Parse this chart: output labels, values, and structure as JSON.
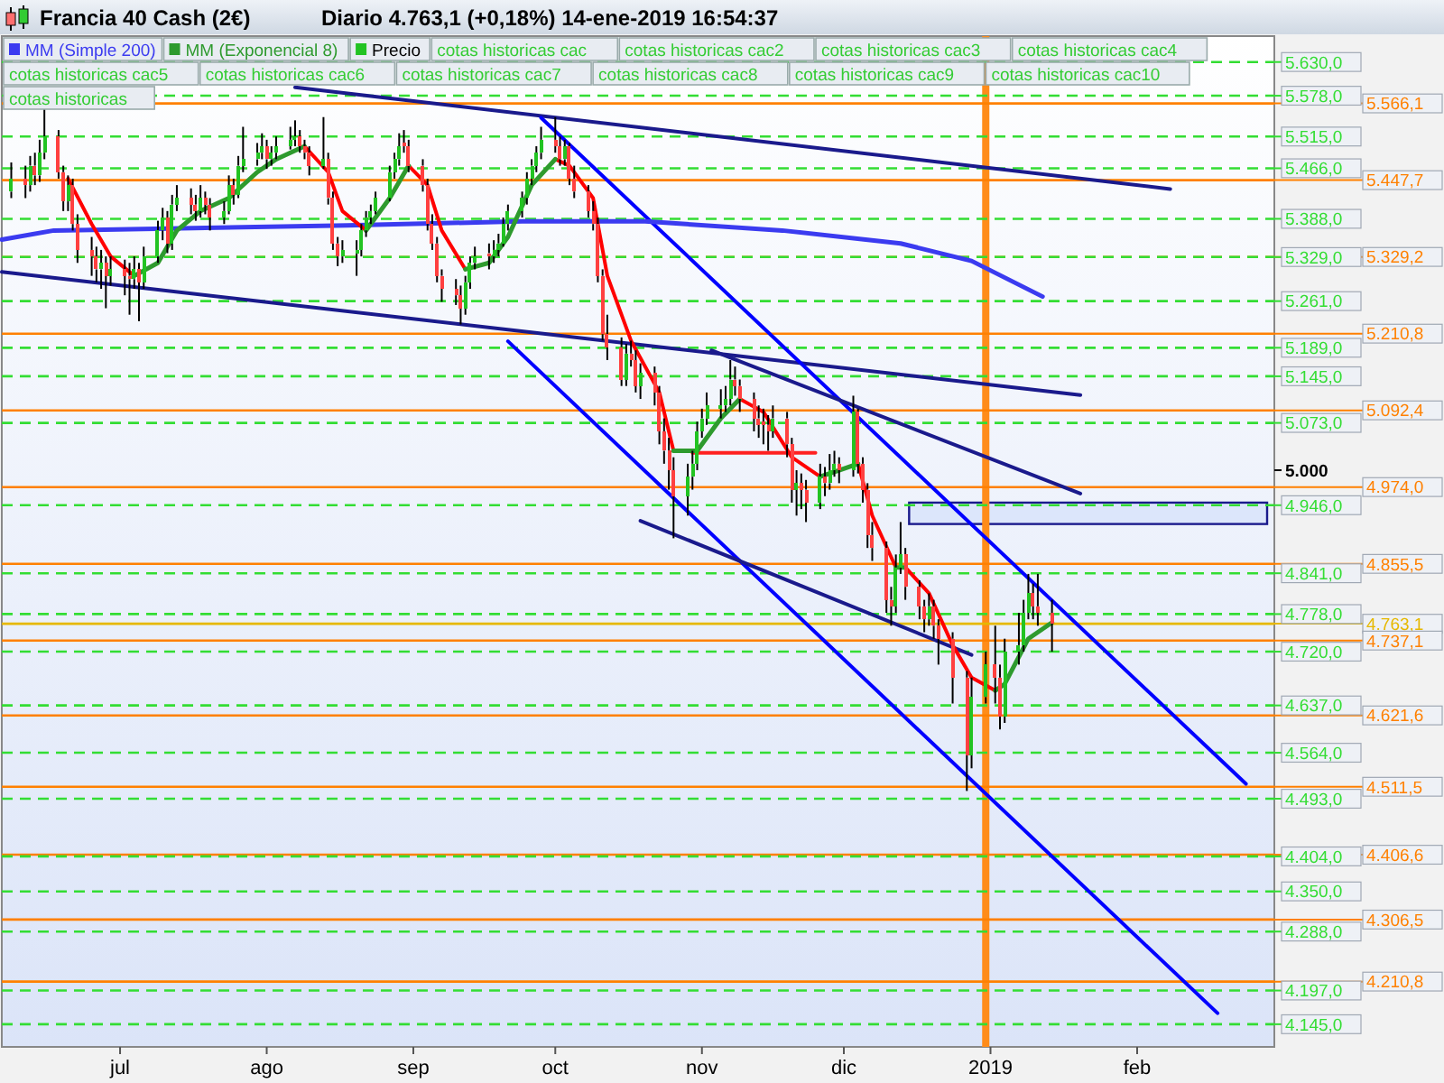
{
  "chart_data": {
    "type": "candlestick",
    "title": "Francia 40 Cash (2€)",
    "subtitle": "Diario   4.763,1 (+0,18%)   14-ene-2019 16:54:37",
    "xlim": [
      "2018-06-06",
      "2019-03-02"
    ],
    "ylim": [
      4110,
      5670
    ],
    "xticks": [
      {
        "value": "2018-07-01",
        "label": "jul"
      },
      {
        "value": "2018-08-01",
        "label": "ago"
      },
      {
        "value": "2018-09-01",
        "label": "sep"
      },
      {
        "value": "2018-10-01",
        "label": "oct"
      },
      {
        "value": "2018-11-01",
        "label": "nov"
      },
      {
        "value": "2018-12-01",
        "label": "dic"
      },
      {
        "value": "2019-01-01",
        "label": "2019"
      },
      {
        "value": "2019-02-01",
        "label": "feb"
      }
    ],
    "yticks": [
      {
        "value": 5630,
        "label": "5.630,0"
      },
      {
        "value": 5578,
        "label": "5.578,0"
      },
      {
        "value": 5515,
        "label": "5.515,0"
      },
      {
        "value": 5466,
        "label": "5.466,0"
      },
      {
        "value": 5388,
        "label": "5.388,0"
      },
      {
        "value": 5329,
        "label": "5.329,0"
      },
      {
        "value": 5261,
        "label": "5.261,0"
      },
      {
        "value": 5189,
        "label": "5.189,0"
      },
      {
        "value": 5145,
        "label": "5.145,0"
      },
      {
        "value": 5073,
        "label": "5.073,0"
      },
      {
        "value": 5000,
        "label": "5.000"
      },
      {
        "value": 4946,
        "label": "4.946,0"
      },
      {
        "value": 4841,
        "label": "4.841,0"
      },
      {
        "value": 4778,
        "label": "4.778,0"
      },
      {
        "value": 4720,
        "label": "4.720,0"
      },
      {
        "value": 4637,
        "label": "4.637,0"
      },
      {
        "value": 4564,
        "label": "4.564,0"
      },
      {
        "value": 4493,
        "label": "4.493,0"
      },
      {
        "value": 4404,
        "label": "4.404,0"
      },
      {
        "value": 4350,
        "label": "4.350,0"
      },
      {
        "value": 4288,
        "label": "4.288,0"
      },
      {
        "value": 4197,
        "label": "4.197,0"
      },
      {
        "value": 4145,
        "label": "4.145,0"
      }
    ],
    "legend": "top left",
    "annotations": [
      "cotas historicas cac",
      "cotas historicas cac2",
      "cotas historicas cac3",
      "cotas historicas cac4",
      "cotas historicas cac5",
      "cotas historicas cac6",
      "cotas historicas cac7",
      "cotas historicas cac8",
      "cotas historicas cac9",
      "cotas historicas cac10",
      "cotas historicas"
    ],
    "bands": [
      {
        "axis": "y",
        "from": 4917,
        "to": 4950,
        "color": "#dce6fb"
      }
    ],
    "ref_lines": [
      {
        "axis": "x",
        "value": "2018-12-31",
        "color": "#ff8c1a",
        "line_style": "solid"
      },
      {
        "axis": "y",
        "value": 5630,
        "color": "#33dd33",
        "line_style": "dashed"
      },
      {
        "axis": "y",
        "value": 5578,
        "color": "#33dd33",
        "line_style": "dashed"
      },
      {
        "axis": "y",
        "value": 5566.1,
        "label": "5.566,1",
        "color": "#ff8000",
        "line_style": "solid"
      },
      {
        "axis": "y",
        "value": 5515,
        "color": "#33dd33",
        "line_style": "dashed"
      },
      {
        "axis": "y",
        "value": 5466,
        "color": "#33dd33",
        "line_style": "dashed"
      },
      {
        "axis": "y",
        "value": 5447.7,
        "label": "5.447,7",
        "color": "#ff8000",
        "line_style": "solid"
      },
      {
        "axis": "y",
        "value": 5388,
        "color": "#33dd33",
        "line_style": "dashed"
      },
      {
        "axis": "y",
        "value": 5329.2,
        "label": "5.329,2",
        "color": "#ff8000",
        "line_style": "dashed"
      },
      {
        "axis": "y",
        "value": 5329,
        "color": "#33dd33",
        "line_style": "dashed"
      },
      {
        "axis": "y",
        "value": 5261,
        "color": "#33dd33",
        "line_style": "dashed"
      },
      {
        "axis": "y",
        "value": 5210.8,
        "label": "5.210,8",
        "color": "#ff8000",
        "line_style": "solid"
      },
      {
        "axis": "y",
        "value": 5189,
        "color": "#33dd33",
        "line_style": "dashed"
      },
      {
        "axis": "y",
        "value": 5145,
        "color": "#33dd33",
        "line_style": "dashed"
      },
      {
        "axis": "y",
        "value": 5092.4,
        "label": "5.092,4",
        "color": "#ff8000",
        "line_style": "solid"
      },
      {
        "axis": "y",
        "value": 5073,
        "color": "#33dd33",
        "line_style": "dashed"
      },
      {
        "axis": "y",
        "value": 4974,
        "label": "4.974,0",
        "color": "#ff8000",
        "line_style": "solid"
      },
      {
        "axis": "y",
        "value": 4946,
        "color": "#33dd33",
        "line_style": "dashed"
      },
      {
        "axis": "y",
        "value": 4855.5,
        "label": "4.855,5",
        "color": "#ff8000",
        "line_style": "solid"
      },
      {
        "axis": "y",
        "value": 4841,
        "color": "#33dd33",
        "line_style": "dashed"
      },
      {
        "axis": "y",
        "value": 4778,
        "color": "#33dd33",
        "line_style": "dashed"
      },
      {
        "axis": "y",
        "value": 4763.1,
        "label": "4.763,1",
        "color": "#e6b800",
        "line_style": "solid"
      },
      {
        "axis": "y",
        "value": 4737.1,
        "label": "4.737,1",
        "color": "#ff8000",
        "line_style": "solid"
      },
      {
        "axis": "y",
        "value": 4720,
        "color": "#33dd33",
        "line_style": "dashed"
      },
      {
        "axis": "y",
        "value": 4637,
        "color": "#33dd33",
        "line_style": "dashed"
      },
      {
        "axis": "y",
        "value": 4621.6,
        "label": "4.621,6",
        "color": "#ff8000",
        "line_style": "solid"
      },
      {
        "axis": "y",
        "value": 4564,
        "color": "#33dd33",
        "line_style": "dashed"
      },
      {
        "axis": "y",
        "value": 4511.5,
        "label": "4.511,5",
        "color": "#ff8000",
        "line_style": "solid"
      },
      {
        "axis": "y",
        "value": 4493,
        "color": "#33dd33",
        "line_style": "dashed"
      },
      {
        "axis": "y",
        "value": 4406.6,
        "label": "4.406,6",
        "color": "#ff8000",
        "line_style": "solid"
      },
      {
        "axis": "y",
        "value": 4404,
        "color": "#33dd33",
        "line_style": "dashed"
      },
      {
        "axis": "y",
        "value": 4350,
        "color": "#33dd33",
        "line_style": "dashed"
      },
      {
        "axis": "y",
        "value": 4306.5,
        "label": "4.306,5",
        "color": "#ff8000",
        "line_style": "solid"
      },
      {
        "axis": "y",
        "value": 4288,
        "color": "#33dd33",
        "line_style": "dashed"
      },
      {
        "axis": "y",
        "value": 4210.8,
        "label": "4.210,8",
        "color": "#ff8000",
        "line_style": "solid"
      },
      {
        "axis": "y",
        "value": 4197,
        "color": "#33dd33",
        "line_style": "dashed"
      },
      {
        "axis": "y",
        "value": 4145,
        "color": "#33dd33",
        "line_style": "dashed"
      }
    ],
    "series": [
      {
        "type": "line",
        "color": "#1a1a8c",
        "x": [
          "2018-08-07",
          "2019-02-08"
        ],
        "values": [
          5591,
          5434
        ]
      },
      {
        "type": "line",
        "color": "#1a1a8c",
        "x": [
          "2018-06-06",
          "2019-01-20"
        ],
        "values": [
          5306,
          5116
        ]
      },
      {
        "type": "line",
        "color": "#0000ff",
        "x": [
          "2018-09-28",
          "2019-02-24"
        ],
        "values": [
          5544,
          4516
        ]
      },
      {
        "type": "line",
        "color": "#0000ff",
        "x": [
          "2018-09-21",
          "2019-02-18"
        ],
        "values": [
          5199,
          4162
        ]
      },
      {
        "type": "line",
        "color": "#1a1a8c",
        "x": [
          "2018-11-03",
          "2019-01-20"
        ],
        "values": [
          5185,
          4964
        ]
      },
      {
        "type": "line",
        "color": "#1a1a8c",
        "x": [
          "2018-10-19",
          "2018-12-28"
        ],
        "values": [
          4922,
          4715
        ]
      },
      {
        "type": "line",
        "color": "#ff2020",
        "x": [
          "2018-10-30",
          "2018-11-25"
        ],
        "values": [
          5027,
          5027
        ]
      },
      {
        "type": "line",
        "name": "MM (Simple 200)",
        "color": "#3b3bf0",
        "x": [
          "2018-06-06",
          "2018-06-17",
          "2018-08-18",
          "2018-09-24",
          "2018-10-20",
          "2018-11-18",
          "2018-12-13",
          "2018-12-28",
          "2019-01-12"
        ],
        "values": [
          5356,
          5370,
          5378,
          5384,
          5384,
          5370,
          5350,
          5323,
          5268
        ]
      },
      {
        "type": "line",
        "color": "#ff0000",
        "x": [
          "2018-06-20",
          "2018-06-25",
          "2018-06-29",
          "2018-07-04",
          "2018-07-09",
          "2018-07-13",
          "2018-07-18",
          "2018-07-24",
          "2018-07-30",
          "2018-08-03",
          "2018-08-09",
          "2018-08-14",
          "2018-08-17",
          "2018-08-22",
          "2018-08-27",
          "2018-08-31",
          "2018-09-04",
          "2018-09-07",
          "2018-09-12",
          "2018-09-17",
          "2018-09-21",
          "2018-09-26",
          "2018-10-01",
          "2018-10-04",
          "2018-10-09",
          "2018-10-12",
          "2018-10-17",
          "2018-10-23",
          "2018-10-26",
          "2018-10-31",
          "2018-11-05",
          "2018-11-09",
          "2018-11-14",
          "2018-11-20",
          "2018-11-26",
          "2018-11-30",
          "2018-12-04",
          "2018-12-07",
          "2018-12-12",
          "2018-12-14",
          "2018-12-19",
          "2018-12-24",
          "2018-12-28",
          "2019-01-02"
        ],
        "values": [
          5450,
          5380,
          5330,
          5300,
          null,
          null,
          null,
          null,
          null,
          null,
          5500,
          5460,
          5400,
          5370,
          null,
          5470,
          5440,
          5370,
          5310,
          null,
          null,
          null,
          5480,
          5470,
          5420,
          5300,
          5200,
          5120,
          5030,
          null,
          null,
          5110,
          5090,
          5020,
          4990,
          null,
          5010,
          4930,
          4850,
          4850,
          4810,
          4730,
          4680,
          4660
        ]
      },
      {
        "type": "line",
        "name": "MM (Exponencial 8)",
        "color": "#2e9a2e",
        "x": [
          "2018-07-04",
          "2018-07-09",
          "2018-07-13",
          "2018-07-18",
          "2018-07-24",
          "2018-07-30",
          "2018-08-03",
          "2018-08-09",
          "2018-08-14",
          "2018-08-17",
          "2018-08-22",
          "2018-08-27",
          "2018-08-31",
          "2018-09-04",
          "2018-09-07",
          "2018-09-12",
          "2018-09-17",
          "2018-09-21",
          "2018-09-26",
          "2018-10-01",
          "2018-10-04",
          "2018-10-09",
          "2018-10-12",
          "2018-10-17",
          "2018-10-23",
          "2018-10-26",
          "2018-10-31",
          "2018-11-05",
          "2018-11-09",
          "2018-11-14",
          "2018-11-20",
          "2018-11-26",
          "2018-11-30",
          "2018-12-04",
          "2018-12-07",
          "2018-12-12",
          "2018-12-14",
          "2018-12-19",
          "2018-12-24",
          "2018-12-28",
          "2019-01-02",
          "2019-01-04",
          "2019-01-09",
          "2019-01-14"
        ],
        "values": [
          5300,
          5320,
          5370,
          5400,
          5420,
          5460,
          5480,
          5500,
          null,
          null,
          5370,
          5420,
          5470,
          null,
          null,
          5310,
          5320,
          5360,
          5440,
          5480,
          null,
          null,
          null,
          null,
          null,
          5030,
          5030,
          5080,
          5110,
          null,
          null,
          4990,
          5000,
          5010,
          null,
          4850,
          4850,
          null,
          null,
          null,
          4660,
          4670,
          4740,
          4765
        ]
      },
      {
        "name": "Precio",
        "x": [
          "2018-06-08",
          "2018-06-11",
          "2018-06-12",
          "2018-06-13",
          "2018-06-14",
          "2018-06-15",
          "2018-06-18",
          "2018-06-19",
          "2018-06-20",
          "2018-06-21",
          "2018-06-22",
          "2018-06-25",
          "2018-06-26",
          "2018-06-27",
          "2018-06-28",
          "2018-06-29",
          "2018-07-02",
          "2018-07-03",
          "2018-07-04",
          "2018-07-05",
          "2018-07-06",
          "2018-07-09",
          "2018-07-10",
          "2018-07-11",
          "2018-07-12",
          "2018-07-13",
          "2018-07-16",
          "2018-07-17",
          "2018-07-18",
          "2018-07-19",
          "2018-07-20",
          "2018-07-23",
          "2018-07-24",
          "2018-07-25",
          "2018-07-26",
          "2018-07-27",
          "2018-07-30",
          "2018-07-31",
          "2018-08-01",
          "2018-08-02",
          "2018-08-03",
          "2018-08-06",
          "2018-08-07",
          "2018-08-08",
          "2018-08-09",
          "2018-08-10",
          "2018-08-13",
          "2018-08-14",
          "2018-08-15",
          "2018-08-16",
          "2018-08-17",
          "2018-08-20",
          "2018-08-21",
          "2018-08-22",
          "2018-08-23",
          "2018-08-24",
          "2018-08-27",
          "2018-08-28",
          "2018-08-29",
          "2018-08-30",
          "2018-08-31",
          "2018-09-03",
          "2018-09-04",
          "2018-09-05",
          "2018-09-06",
          "2018-09-07",
          "2018-09-10",
          "2018-09-11",
          "2018-09-12",
          "2018-09-13",
          "2018-09-14",
          "2018-09-17",
          "2018-09-18",
          "2018-09-19",
          "2018-09-20",
          "2018-09-21",
          "2018-09-24",
          "2018-09-25",
          "2018-09-26",
          "2018-09-27",
          "2018-09-28",
          "2018-10-01",
          "2018-10-02",
          "2018-10-03",
          "2018-10-04",
          "2018-10-05",
          "2018-10-08",
          "2018-10-09",
          "2018-10-10",
          "2018-10-11",
          "2018-10-12",
          "2018-10-15",
          "2018-10-16",
          "2018-10-17",
          "2018-10-18",
          "2018-10-19",
          "2018-10-22",
          "2018-10-23",
          "2018-10-24",
          "2018-10-25",
          "2018-10-26",
          "2018-10-29",
          "2018-10-30",
          "2018-10-31",
          "2018-11-01",
          "2018-11-02",
          "2018-11-05",
          "2018-11-06",
          "2018-11-07",
          "2018-11-08",
          "2018-11-09",
          "2018-11-12",
          "2018-11-13",
          "2018-11-14",
          "2018-11-15",
          "2018-11-16",
          "2018-11-19",
          "2018-11-20",
          "2018-11-21",
          "2018-11-22",
          "2018-11-23",
          "2018-11-26",
          "2018-11-27",
          "2018-11-28",
          "2018-11-29",
          "2018-11-30",
          "2018-12-03",
          "2018-12-04",
          "2018-12-05",
          "2018-12-06",
          "2018-12-07",
          "2018-12-10",
          "2018-12-11",
          "2018-12-12",
          "2018-12-13",
          "2018-12-14",
          "2018-12-17",
          "2018-12-18",
          "2018-12-19",
          "2018-12-20",
          "2018-12-21",
          "2018-12-24",
          "2018-12-27",
          "2018-12-28",
          "2018-12-31",
          "2019-01-02",
          "2019-01-03",
          "2019-01-04",
          "2019-01-07",
          "2019-01-08",
          "2019-01-09",
          "2019-01-10",
          "2019-01-11",
          "2019-01-14"
        ],
        "ohlc": [
          [
            5430,
            5475,
            5420,
            5450
          ],
          [
            5450,
            5470,
            5420,
            5440
          ],
          [
            5440,
            5485,
            5430,
            5470
          ],
          [
            5470,
            5490,
            5440,
            5455
          ],
          [
            5455,
            5510,
            5445,
            5490
          ],
          [
            5490,
            5560,
            5480,
            5515
          ],
          [
            5515,
            5525,
            5450,
            5460
          ],
          [
            5460,
            5470,
            5400,
            5415
          ],
          [
            5415,
            5455,
            5400,
            5440
          ],
          [
            5440,
            5450,
            5370,
            5380
          ],
          [
            5380,
            5395,
            5320,
            5340
          ],
          [
            5340,
            5360,
            5300,
            5330
          ],
          [
            5330,
            5345,
            5290,
            5310
          ],
          [
            5310,
            5340,
            5280,
            5320
          ],
          [
            5320,
            5330,
            5250,
            5300
          ],
          [
            5300,
            5330,
            5285,
            5310
          ],
          [
            5310,
            5325,
            5270,
            5300
          ],
          [
            5300,
            5320,
            5240,
            5295
          ],
          [
            5295,
            5330,
            5280,
            5310
          ],
          [
            5310,
            5320,
            5230,
            5290
          ],
          [
            5290,
            5345,
            5280,
            5330
          ],
          [
            5330,
            5385,
            5320,
            5370
          ],
          [
            5370,
            5405,
            5355,
            5390
          ],
          [
            5390,
            5400,
            5335,
            5350
          ],
          [
            5350,
            5425,
            5340,
            5410
          ],
          [
            5410,
            5440,
            5400,
            5420
          ],
          [
            5420,
            5435,
            5395,
            5410
          ],
          [
            5410,
            5425,
            5385,
            5400
          ],
          [
            5400,
            5440,
            5390,
            5420
          ],
          [
            5420,
            5430,
            5395,
            5410
          ],
          [
            5410,
            5420,
            5370,
            5390
          ],
          [
            5390,
            5415,
            5380,
            5400
          ],
          [
            5400,
            5455,
            5395,
            5440
          ],
          [
            5440,
            5450,
            5410,
            5425
          ],
          [
            5425,
            5485,
            5420,
            5470
          ],
          [
            5470,
            5530,
            5460,
            5480
          ],
          [
            5480,
            5505,
            5470,
            5490
          ],
          [
            5490,
            5520,
            5480,
            5500
          ],
          [
            5500,
            5510,
            5465,
            5480
          ],
          [
            5480,
            5500,
            5470,
            5490
          ],
          [
            5490,
            5515,
            5480,
            5500
          ],
          [
            5500,
            5530,
            5495,
            5510
          ],
          [
            5510,
            5540,
            5500,
            5515
          ],
          [
            5515,
            5525,
            5490,
            5500
          ],
          [
            5500,
            5510,
            5480,
            5490
          ],
          [
            5490,
            5500,
            5455,
            5470
          ],
          [
            5470,
            5545,
            5465,
            5480
          ],
          [
            5480,
            5490,
            5410,
            5420
          ],
          [
            5420,
            5430,
            5340,
            5350
          ],
          [
            5350,
            5360,
            5315,
            5330
          ],
          [
            5330,
            5355,
            5320,
            5340
          ],
          [
            5335,
            5355,
            5300,
            5340
          ],
          [
            5340,
            5380,
            5330,
            5370
          ],
          [
            5370,
            5400,
            5360,
            5390
          ],
          [
            5390,
            5410,
            5380,
            5400
          ],
          [
            5400,
            5430,
            5395,
            5420
          ],
          [
            5420,
            5470,
            5415,
            5460
          ],
          [
            5460,
            5490,
            5450,
            5480
          ],
          [
            5480,
            5520,
            5470,
            5500
          ],
          [
            5505,
            5525,
            5490,
            5500
          ],
          [
            5500,
            5510,
            5460,
            5470
          ],
          [
            5470,
            5480,
            5430,
            5440
          ],
          [
            5440,
            5450,
            5370,
            5380
          ],
          [
            5380,
            5395,
            5340,
            5350
          ],
          [
            5350,
            5360,
            5290,
            5300
          ],
          [
            5300,
            5310,
            5260,
            5280
          ],
          [
            5280,
            5295,
            5255,
            5270
          ],
          [
            5270,
            5285,
            5225,
            5250
          ],
          [
            5250,
            5300,
            5240,
            5290
          ],
          [
            5290,
            5330,
            5280,
            5320
          ],
          [
            5320,
            5345,
            5310,
            5330
          ],
          [
            5335,
            5350,
            5310,
            5330
          ],
          [
            5330,
            5355,
            5320,
            5340
          ],
          [
            5340,
            5365,
            5330,
            5350
          ],
          [
            5350,
            5390,
            5345,
            5380
          ],
          [
            5380,
            5410,
            5370,
            5400
          ],
          [
            5400,
            5430,
            5390,
            5420
          ],
          [
            5420,
            5460,
            5410,
            5450
          ],
          [
            5450,
            5480,
            5440,
            5470
          ],
          [
            5470,
            5500,
            5460,
            5490
          ],
          [
            5490,
            5530,
            5480,
            5510
          ],
          [
            5510,
            5545,
            5490,
            5500
          ],
          [
            5500,
            5515,
            5470,
            5480
          ],
          [
            5480,
            5510,
            5470,
            5500
          ],
          [
            5500,
            5505,
            5440,
            5450
          ],
          [
            5450,
            5470,
            5420,
            5430
          ],
          [
            5430,
            5440,
            5390,
            5400
          ],
          [
            5400,
            5415,
            5370,
            5380
          ],
          [
            5380,
            5390,
            5290,
            5300
          ],
          [
            5300,
            5310,
            5200,
            5210
          ],
          [
            5210,
            5240,
            5170,
            5190
          ],
          [
            5190,
            5205,
            5130,
            5140
          ],
          [
            5140,
            5195,
            5130,
            5180
          ],
          [
            5180,
            5200,
            5160,
            5170
          ],
          [
            5170,
            5185,
            5120,
            5130
          ],
          [
            5130,
            5165,
            5110,
            5150
          ],
          [
            5150,
            5160,
            5100,
            5120
          ],
          [
            5120,
            5130,
            5040,
            5060
          ],
          [
            5060,
            5080,
            5010,
            5030
          ],
          [
            5030,
            5050,
            4970,
            5000
          ],
          [
            5000,
            5020,
            4895,
            4960
          ],
          [
            4960,
            5010,
            4930,
            4990
          ],
          [
            4990,
            5030,
            4970,
            5010
          ],
          [
            5010,
            5075,
            5000,
            5060
          ],
          [
            5060,
            5095,
            5050,
            5080
          ],
          [
            5080,
            5120,
            5070,
            5100
          ],
          [
            5095,
            5125,
            5080,
            5100
          ],
          [
            5100,
            5130,
            5090,
            5110
          ],
          [
            5110,
            5170,
            5100,
            5140
          ],
          [
            5140,
            5160,
            5115,
            5130
          ],
          [
            5130,
            5140,
            5090,
            5110
          ],
          [
            5110,
            5120,
            5060,
            5080
          ],
          [
            5080,
            5100,
            5050,
            5070
          ],
          [
            5075,
            5095,
            5040,
            5070
          ],
          [
            5070,
            5085,
            5030,
            5060
          ],
          [
            5060,
            5100,
            5050,
            5080
          ],
          [
            5080,
            5090,
            5020,
            5040
          ],
          [
            5040,
            5050,
            4950,
            4970
          ],
          [
            4970,
            5000,
            4930,
            4980
          ],
          [
            4980,
            4995,
            4940,
            4970
          ],
          [
            4970,
            4985,
            4920,
            4950
          ],
          [
            4950,
            5010,
            4940,
            4990
          ],
          [
            4990,
            5005,
            4960,
            4980
          ],
          [
            4980,
            5025,
            4970,
            5000
          ],
          [
            5000,
            5030,
            4990,
            5010
          ],
          [
            5010,
            5020,
            4980,
            5000
          ],
          [
            5000,
            5115,
            4990,
            5090
          ],
          [
            5090,
            5095,
            4995,
            5010
          ],
          [
            5010,
            5020,
            4950,
            4970
          ],
          [
            4970,
            4980,
            4880,
            4900
          ],
          [
            4900,
            4920,
            4860,
            4880
          ],
          [
            4880,
            4890,
            4780,
            4800
          ],
          [
            4800,
            4820,
            4760,
            4790
          ],
          [
            4790,
            4870,
            4780,
            4850
          ],
          [
            4850,
            4920,
            4840,
            4870
          ],
          [
            4870,
            4880,
            4800,
            4820
          ],
          [
            4820,
            4830,
            4770,
            4790
          ],
          [
            4790,
            4800,
            4750,
            4770
          ],
          [
            4770,
            4810,
            4760,
            4790
          ],
          [
            4790,
            4800,
            4740,
            4760
          ],
          [
            4760,
            4770,
            4700,
            4740
          ],
          [
            4740,
            4750,
            4640,
            4680
          ],
          [
            4680,
            4690,
            4505,
            4560
          ],
          [
            4560,
            4680,
            4540,
            4650
          ],
          [
            4650,
            4720,
            4640,
            4700
          ],
          [
            4700,
            4760,
            4640,
            4680
          ],
          [
            4680,
            4700,
            4600,
            4620
          ],
          [
            4620,
            4740,
            4610,
            4720
          ],
          [
            4720,
            4780,
            4700,
            4730
          ],
          [
            4730,
            4800,
            4720,
            4780
          ],
          [
            4780,
            4840,
            4770,
            4810
          ],
          [
            4810,
            4825,
            4770,
            4790
          ],
          [
            4790,
            4840,
            4760,
            4780
          ],
          [
            4780,
            4800,
            4720,
            4763.1
          ]
        ]
      }
    ]
  }
}
